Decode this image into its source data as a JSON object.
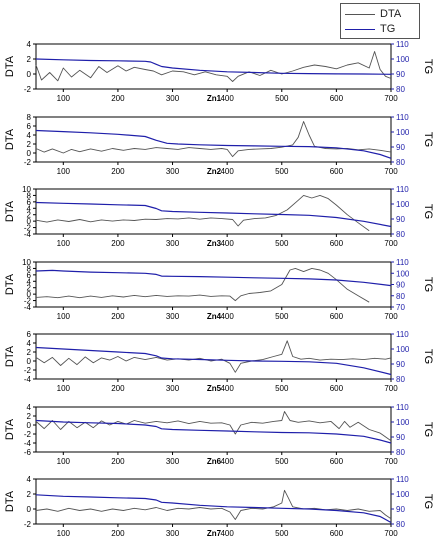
{
  "legend": {
    "items": [
      {
        "label": "DTA",
        "color": "#555555"
      },
      {
        "label": "TG",
        "color": "#1f1faa"
      }
    ]
  },
  "chart_data": [
    {
      "type": "line",
      "panel": "Zn1",
      "xlabel": "Zn1",
      "ylabel_left": "DTA",
      "ylabel_right": "TG",
      "xlim": [
        50,
        700
      ],
      "xticks": [
        100,
        200,
        300,
        400,
        500,
        600,
        700
      ],
      "ylim_left": [
        -2,
        4
      ],
      "yticks_left": [
        -2,
        0,
        2,
        4
      ],
      "ylim_right": [
        80,
        110
      ],
      "yticks_right": [
        80,
        90,
        100,
        110
      ],
      "series": [
        {
          "name": "DTA",
          "axis": "left",
          "x": [
            50,
            60,
            75,
            90,
            100,
            115,
            130,
            150,
            165,
            180,
            200,
            215,
            230,
            250,
            265,
            280,
            300,
            320,
            340,
            360,
            380,
            400,
            410,
            420,
            440,
            460,
            480,
            500,
            520,
            540,
            560,
            580,
            600,
            620,
            640,
            660,
            670,
            680,
            690,
            700
          ],
          "y": [
            1.2,
            -0.8,
            0.2,
            -0.9,
            0.8,
            -0.4,
            0.5,
            -0.5,
            1.0,
            0.2,
            1.1,
            0.4,
            0.9,
            0.6,
            0.4,
            -0.1,
            0.4,
            0.3,
            -0.1,
            0.3,
            -0.1,
            -0.3,
            -1.0,
            -0.3,
            0.3,
            -0.2,
            0.5,
            0.0,
            0.4,
            0.9,
            1.2,
            1.0,
            0.7,
            1.2,
            1.5,
            0.8,
            3.0,
            0.6,
            -0.3,
            -0.6
          ]
        },
        {
          "name": "TG",
          "axis": "right",
          "x": [
            50,
            100,
            150,
            200,
            250,
            260,
            270,
            280,
            300,
            350,
            400,
            450,
            500,
            550,
            600,
            650,
            700
          ],
          "y": [
            100,
            99.5,
            99,
            98.8,
            98.5,
            98,
            96.5,
            95,
            94,
            92.5,
            91.5,
            91,
            90.5,
            90.3,
            90.1,
            90,
            89.8
          ]
        }
      ]
    },
    {
      "type": "line",
      "panel": "Zn2",
      "xlabel": "Zn2",
      "ylabel_left": "DTA",
      "ylabel_right": "TG",
      "xlim": [
        50,
        700
      ],
      "xticks": [
        100,
        200,
        300,
        400,
        500,
        600,
        700
      ],
      "ylim_left": [
        -2,
        8
      ],
      "yticks_left": [
        -2,
        0,
        2,
        4,
        6,
        8
      ],
      "ylim_right": [
        80,
        110
      ],
      "yticks_right": [
        80,
        90,
        100,
        110
      ],
      "series": [
        {
          "name": "DTA",
          "axis": "left",
          "x": [
            50,
            65,
            80,
            100,
            115,
            130,
            150,
            170,
            190,
            210,
            230,
            250,
            270,
            290,
            310,
            330,
            350,
            370,
            390,
            400,
            410,
            420,
            440,
            460,
            480,
            500,
            520,
            530,
            540,
            550,
            560,
            580,
            600,
            620,
            640,
            660,
            680,
            700
          ],
          "y": [
            1.0,
            0.2,
            0.9,
            0.0,
            0.8,
            0.3,
            0.9,
            0.4,
            1.0,
            0.6,
            1.0,
            0.8,
            1.2,
            1.0,
            0.8,
            1.2,
            1.0,
            0.8,
            1.0,
            0.8,
            -0.8,
            0.5,
            0.8,
            0.9,
            1.0,
            1.3,
            1.8,
            3.5,
            7.0,
            4.0,
            1.5,
            1.0,
            0.9,
            1.0,
            0.7,
            0.9,
            0.6,
            0.2
          ]
        },
        {
          "name": "TG",
          "axis": "right",
          "x": [
            50,
            100,
            150,
            200,
            250,
            270,
            290,
            310,
            350,
            400,
            450,
            500,
            550,
            600,
            650,
            680,
            700
          ],
          "y": [
            101,
            100.3,
            99.5,
            98.5,
            97,
            94.5,
            92.5,
            92,
            91.5,
            91,
            90.7,
            90.5,
            90.3,
            89.5,
            87.5,
            85,
            82.5
          ]
        }
      ]
    },
    {
      "type": "line",
      "panel": "Zn3",
      "xlabel": "Zn3",
      "ylabel_left": "DTA",
      "ylabel_right": "TG",
      "xlim": [
        50,
        700
      ],
      "xticks": [
        100,
        200,
        300,
        400,
        500,
        600,
        700
      ],
      "ylim_left": [
        -4,
        10
      ],
      "yticks_left": [
        -4,
        -2,
        0,
        2,
        4,
        6,
        8,
        10
      ],
      "ylim_right": [
        80,
        110
      ],
      "yticks_right": [
        80,
        90,
        100,
        110
      ],
      "series": [
        {
          "name": "DTA",
          "axis": "left",
          "x": [
            50,
            70,
            90,
            110,
            130,
            150,
            170,
            190,
            210,
            230,
            250,
            270,
            290,
            310,
            330,
            350,
            370,
            390,
            410,
            420,
            430,
            450,
            470,
            490,
            510,
            530,
            540,
            555,
            570,
            585,
            600,
            620,
            640,
            660
          ],
          "y": [
            0.3,
            -0.3,
            0.4,
            -0.1,
            0.5,
            -0.2,
            0.4,
            0.0,
            0.4,
            0.2,
            0.6,
            0.5,
            0.8,
            0.7,
            1.0,
            0.6,
            1.0,
            0.8,
            0.5,
            -1.5,
            0.3,
            0.8,
            1.0,
            1.8,
            3.5,
            6.5,
            8.0,
            7.2,
            8.0,
            7.0,
            5.0,
            2.0,
            -0.5,
            -3.0
          ]
        },
        {
          "name": "TG",
          "axis": "right",
          "x": [
            50,
            100,
            150,
            200,
            250,
            270,
            280,
            300,
            350,
            400,
            450,
            500,
            550,
            600,
            650,
            700
          ],
          "y": [
            101,
            100.5,
            100,
            99.5,
            99,
            97,
            95.5,
            95,
            94.5,
            94,
            93.5,
            93,
            92.5,
            91,
            88.5,
            85
          ]
        }
      ]
    },
    {
      "type": "line",
      "panel": "Zn4",
      "xlabel": "Zn4",
      "ylabel_left": "DTA",
      "ylabel_right": "TG",
      "xlim": [
        50,
        700
      ],
      "xticks": [
        100,
        200,
        300,
        400,
        500,
        600,
        700
      ],
      "ylim_left": [
        -4,
        10
      ],
      "yticks_left": [
        -4,
        -2,
        0,
        2,
        4,
        6,
        8,
        10
      ],
      "ylim_right": [
        70,
        110
      ],
      "yticks_right": [
        70,
        80,
        90,
        100,
        110
      ],
      "series": [
        {
          "name": "DTA",
          "axis": "left",
          "x": [
            50,
            70,
            90,
            110,
            130,
            150,
            170,
            190,
            210,
            230,
            250,
            270,
            290,
            310,
            330,
            350,
            370,
            390,
            405,
            415,
            425,
            440,
            460,
            480,
            500,
            515,
            525,
            540,
            555,
            570,
            585,
            600,
            620,
            640,
            660
          ],
          "y": [
            -1.0,
            -0.8,
            -1.1,
            -0.6,
            -1.1,
            -0.6,
            -1.0,
            -0.5,
            -0.9,
            -0.4,
            -0.8,
            -0.4,
            -0.7,
            -0.5,
            -0.6,
            -0.3,
            -0.7,
            -0.5,
            -0.6,
            -2.0,
            -0.5,
            0.2,
            0.5,
            1.0,
            3.0,
            7.5,
            8.0,
            7.0,
            8.0,
            7.5,
            6.5,
            4.5,
            1.5,
            -0.5,
            -2.5
          ]
        },
        {
          "name": "TG",
          "axis": "right",
          "x": [
            50,
            80,
            100,
            150,
            200,
            250,
            270,
            280,
            300,
            350,
            400,
            450,
            500,
            550,
            600,
            650,
            700
          ],
          "y": [
            102,
            102.5,
            102,
            101,
            100.5,
            100,
            99,
            97.5,
            97.3,
            97,
            96.5,
            96,
            95.5,
            95,
            94,
            92,
            89
          ]
        }
      ]
    },
    {
      "type": "line",
      "panel": "Zn5",
      "xlabel": "Zn5",
      "ylabel_left": "DTA",
      "ylabel_right": "TG",
      "xlim": [
        50,
        700
      ],
      "xticks": [
        100,
        200,
        300,
        400,
        500,
        600,
        700
      ],
      "ylim_left": [
        -4,
        6
      ],
      "yticks_left": [
        -4,
        -2,
        0,
        2,
        4,
        6
      ],
      "ylim_right": [
        80,
        110
      ],
      "yticks_right": [
        80,
        90,
        100,
        110
      ],
      "series": [
        {
          "name": "DTA",
          "axis": "left",
          "x": [
            50,
            65,
            80,
            95,
            110,
            125,
            140,
            155,
            170,
            185,
            200,
            215,
            230,
            250,
            270,
            290,
            310,
            330,
            350,
            370,
            390,
            405,
            415,
            425,
            445,
            465,
            485,
            500,
            510,
            520,
            535,
            550,
            570,
            590,
            610,
            630,
            650,
            670,
            690,
            700
          ],
          "y": [
            0.8,
            -0.4,
            0.8,
            -1.0,
            0.6,
            -0.8,
            0.9,
            -0.4,
            0.7,
            0.2,
            1.0,
            0.0,
            0.8,
            0.3,
            0.8,
            0.2,
            0.5,
            0.2,
            0.6,
            0.0,
            0.4,
            -0.5,
            -2.5,
            -0.5,
            0.0,
            0.3,
            1.0,
            1.5,
            4.5,
            1.0,
            0.4,
            0.6,
            0.2,
            0.4,
            0.3,
            0.5,
            0.3,
            0.6,
            0.4,
            0.7
          ]
        },
        {
          "name": "TG",
          "axis": "right",
          "x": [
            50,
            100,
            150,
            200,
            250,
            270,
            280,
            300,
            350,
            400,
            450,
            500,
            550,
            600,
            650,
            700
          ],
          "y": [
            101,
            100,
            99,
            98,
            97,
            95.5,
            94,
            93.5,
            93,
            92.5,
            92,
            91.8,
            91.5,
            90.5,
            87.5,
            83
          ]
        }
      ]
    },
    {
      "type": "line",
      "panel": "Zn6",
      "xlabel": "Zn6",
      "ylabel_left": "DTA",
      "ylabel_right": "TG",
      "xlim": [
        50,
        700
      ],
      "xticks": [
        100,
        200,
        300,
        400,
        500,
        600,
        700
      ],
      "ylim_left": [
        -6,
        4
      ],
      "yticks_left": [
        -6,
        -4,
        -2,
        0,
        2,
        4
      ],
      "ylim_right": [
        80,
        110
      ],
      "yticks_right": [
        80,
        90,
        100,
        110
      ],
      "series": [
        {
          "name": "DTA",
          "axis": "left",
          "x": [
            50,
            65,
            80,
            95,
            110,
            125,
            140,
            155,
            170,
            185,
            200,
            215,
            230,
            250,
            270,
            290,
            310,
            330,
            350,
            370,
            390,
            405,
            415,
            425,
            445,
            465,
            485,
            500,
            505,
            515,
            530,
            550,
            570,
            590,
            605,
            615,
            625,
            640,
            660,
            680,
            700
          ],
          "y": [
            0.8,
            -0.8,
            1.0,
            -1.0,
            0.8,
            -0.6,
            0.6,
            -0.6,
            0.9,
            0.0,
            0.8,
            0.2,
            1.0,
            0.4,
            0.8,
            0.5,
            0.9,
            0.3,
            0.8,
            0.4,
            0.5,
            0.0,
            -2.0,
            0.0,
            0.6,
            0.4,
            0.8,
            1.0,
            3.0,
            1.0,
            0.6,
            0.9,
            0.5,
            0.8,
            -0.8,
            0.8,
            -0.5,
            0.6,
            -1.0,
            -1.8,
            -3.5
          ]
        },
        {
          "name": "TG",
          "axis": "right",
          "x": [
            50,
            100,
            150,
            200,
            250,
            270,
            280,
            300,
            350,
            400,
            450,
            500,
            550,
            600,
            650,
            680,
            700
          ],
          "y": [
            101,
            100,
            99.5,
            99,
            98,
            97,
            95.5,
            95,
            94.5,
            94,
            93.5,
            93,
            92.8,
            92,
            90.5,
            88,
            86
          ]
        }
      ]
    },
    {
      "type": "line",
      "panel": "Zn7",
      "xlabel": "Zn7",
      "ylabel_left": "DTA",
      "ylabel_right": "TG",
      "xlim": [
        50,
        700
      ],
      "xticks": [
        100,
        200,
        300,
        400,
        500,
        600,
        700
      ],
      "ylim_left": [
        -2,
        4
      ],
      "yticks_left": [
        -2,
        0,
        2,
        4
      ],
      "ylim_right": [
        80,
        110
      ],
      "yticks_right": [
        80,
        90,
        100,
        110
      ],
      "series": [
        {
          "name": "DTA",
          "axis": "left",
          "x": [
            50,
            70,
            90,
            110,
            130,
            150,
            170,
            190,
            210,
            230,
            250,
            270,
            290,
            310,
            330,
            350,
            370,
            390,
            405,
            415,
            425,
            445,
            465,
            485,
            500,
            505,
            512,
            520,
            540,
            560,
            580,
            600,
            620,
            640,
            660,
            680,
            690,
            700
          ],
          "y": [
            -0.2,
            0.0,
            -0.3,
            0.1,
            -0.2,
            0.0,
            -0.3,
            0.0,
            -0.2,
            0.1,
            -0.1,
            0.2,
            -0.2,
            0.1,
            0.0,
            0.2,
            0.0,
            0.1,
            -0.4,
            -1.4,
            -0.2,
            0.1,
            0.0,
            0.3,
            0.8,
            2.5,
            1.5,
            0.3,
            0.0,
            0.1,
            -0.1,
            0.0,
            -0.2,
            0.0,
            -0.3,
            -0.2,
            -0.8,
            -1.3
          ]
        },
        {
          "name": "TG",
          "axis": "right",
          "x": [
            50,
            100,
            150,
            200,
            250,
            270,
            280,
            300,
            350,
            400,
            450,
            500,
            550,
            600,
            650,
            680,
            700
          ],
          "y": [
            99.5,
            98.5,
            98,
            97.5,
            97,
            96,
            94.5,
            94,
            92.5,
            91.5,
            91,
            90.5,
            90,
            89,
            87.5,
            85,
            81
          ]
        }
      ]
    }
  ]
}
